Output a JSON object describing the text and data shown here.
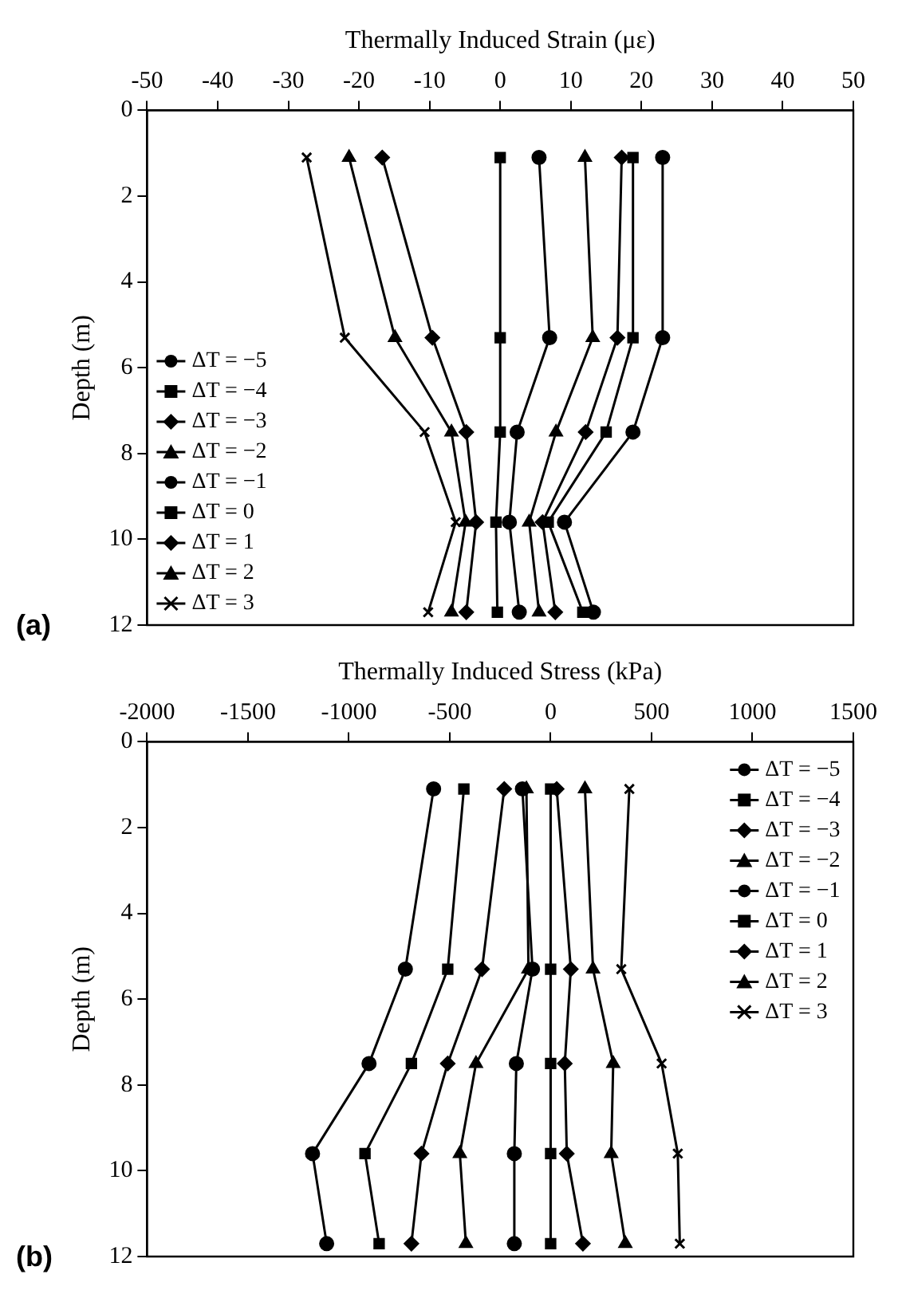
{
  "chart_data": [
    {
      "type": "line",
      "orientation": "horizontal",
      "xlabel": "Thermally Induced Strain (με)",
      "ylabel": "Depth (m)",
      "annotations": [
        "(a)"
      ],
      "x": [
        1.1,
        5.3,
        7.5,
        9.6,
        11.7
      ],
      "xlim": [
        -50,
        50
      ],
      "xticks": [
        -50,
        -40,
        -30,
        -20,
        -10,
        0,
        10,
        20,
        30,
        40,
        50
      ],
      "ylim": [
        12,
        0
      ],
      "yticks": [
        0,
        2,
        4,
        6,
        8,
        10,
        12
      ],
      "grid": false,
      "legend": "bottom left",
      "line_style": "solid",
      "series": [
        {
          "name": "ΔT = −5",
          "color": "#000000",
          "marker": "circle",
          "values": [
            23,
            23,
            18.8,
            9.1,
            13.2
          ]
        },
        {
          "name": "ΔT = −4",
          "color": "#000000",
          "marker": "square",
          "values": [
            18.8,
            18.8,
            15,
            6.8,
            11.7
          ]
        },
        {
          "name": "ΔT = −3",
          "color": "#000000",
          "marker": "diamond",
          "values": [
            17.2,
            16.6,
            12.1,
            6,
            7.8
          ]
        },
        {
          "name": "ΔT = −2",
          "color": "#000000",
          "marker": "triangle",
          "values": [
            12,
            13.1,
            7.9,
            4.1,
            5.5
          ]
        },
        {
          "name": "ΔT = −1",
          "color": "#000000",
          "marker": "circle",
          "values": [
            5.5,
            7,
            2.4,
            1.3,
            2.7
          ]
        },
        {
          "name": "ΔT = 0",
          "color": "#000000",
          "marker": "square",
          "values": [
            0,
            0,
            0,
            -0.6,
            -0.4
          ]
        },
        {
          "name": "ΔT = 1",
          "color": "#000000",
          "marker": "diamond",
          "values": [
            -16.7,
            -9.6,
            -4.8,
            -3.4,
            -4.8
          ]
        },
        {
          "name": "ΔT = 2",
          "color": "#000000",
          "marker": "triangle",
          "values": [
            -21.4,
            -14.9,
            -6.9,
            -4.9,
            -6.9
          ]
        },
        {
          "name": "ΔT = 3",
          "color": "#000000",
          "marker": "cross",
          "values": [
            -27.4,
            -22,
            -10.7,
            -6.3,
            -10.2
          ]
        }
      ]
    },
    {
      "type": "line",
      "orientation": "horizontal",
      "xlabel": "Thermally Induced Stress (kPa)",
      "ylabel": "Depth (m)",
      "annotations": [
        "(b)"
      ],
      "x": [
        1.1,
        5.3,
        7.5,
        9.6,
        11.7
      ],
      "xlim": [
        -2000,
        1500
      ],
      "xticks": [
        -2000,
        -1500,
        -1000,
        -500,
        0,
        500,
        1000,
        1500
      ],
      "ylim": [
        12,
        0
      ],
      "yticks": [
        0,
        2,
        4,
        6,
        8,
        10,
        12
      ],
      "grid": false,
      "legend": "top right",
      "line_style": "solid",
      "series": [
        {
          "name": "ΔT = −5",
          "color": "#000000",
          "marker": "circle",
          "values": [
            -580,
            -720,
            -900,
            -1180,
            -1110
          ]
        },
        {
          "name": "ΔT = −4",
          "color": "#000000",
          "marker": "square",
          "values": [
            -430,
            -510,
            -690,
            -920,
            -850
          ]
        },
        {
          "name": "ΔT = −3",
          "color": "#000000",
          "marker": "diamond",
          "values": [
            -230,
            -340,
            -510,
            -640,
            -690
          ]
        },
        {
          "name": "ΔT = −2",
          "color": "#000000",
          "marker": "triangle",
          "values": [
            -120,
            -110,
            -370,
            -450,
            -420
          ]
        },
        {
          "name": "ΔT = −1",
          "color": "#000000",
          "marker": "circle",
          "values": [
            -140,
            -90,
            -170,
            -180,
            -180
          ]
        },
        {
          "name": "ΔT = 0",
          "color": "#000000",
          "marker": "square",
          "values": [
            0,
            0,
            0,
            0,
            0
          ]
        },
        {
          "name": "ΔT = 1",
          "color": "#000000",
          "marker": "diamond",
          "values": [
            30,
            100,
            70,
            80,
            160
          ]
        },
        {
          "name": "ΔT = 2",
          "color": "#000000",
          "marker": "triangle",
          "values": [
            170,
            210,
            310,
            300,
            370
          ]
        },
        {
          "name": "ΔT = 3",
          "color": "#000000",
          "marker": "cross",
          "values": [
            390,
            350,
            550,
            630,
            640
          ]
        }
      ]
    }
  ]
}
